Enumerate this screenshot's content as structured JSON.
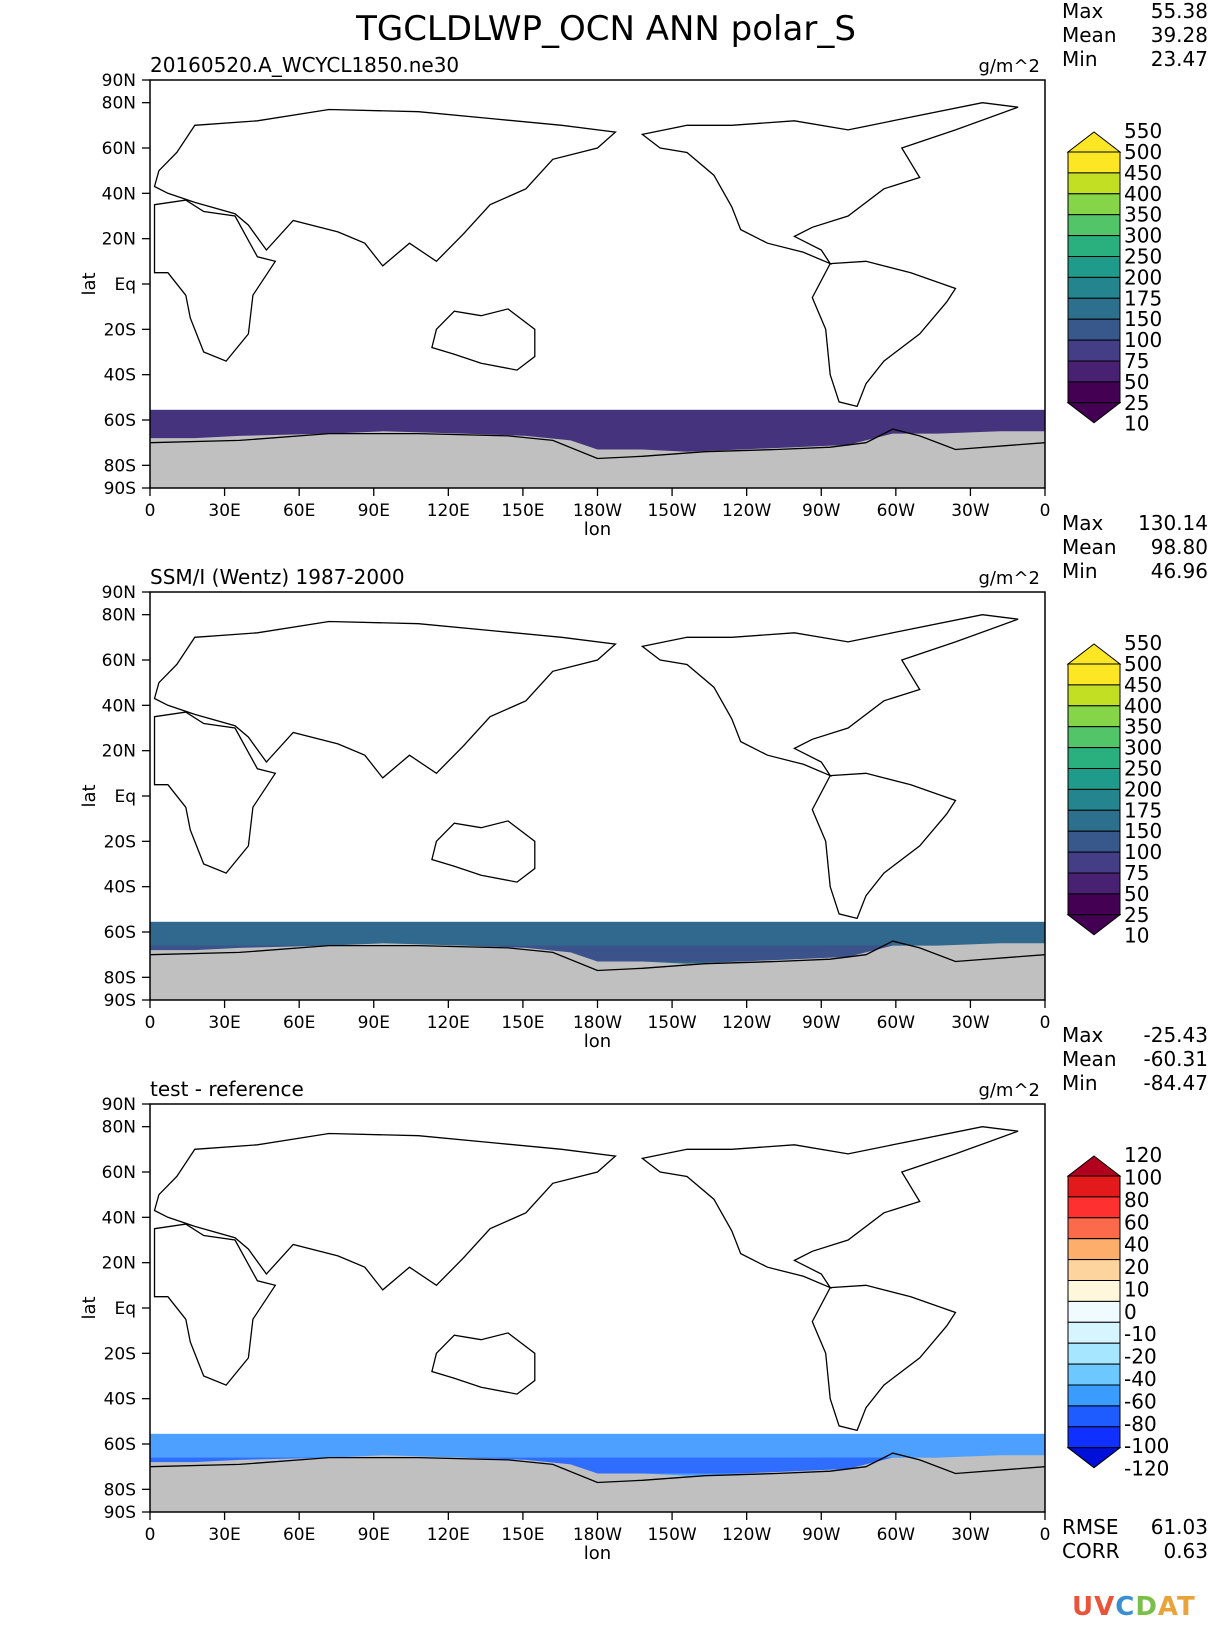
{
  "title": "TGCLDLWP_OCN ANN polar_S",
  "chart_data": [
    {
      "type": "heatmap",
      "subtitle": "20160520.A_WCYCL1850.ne30",
      "units": "g/m^2",
      "stats": {
        "max_label": "Max",
        "max": "55.38",
        "mean_label": "Mean",
        "mean": "39.28",
        "min_label": "Min",
        "min": "23.47"
      },
      "xlabel": "lon",
      "ylabel": "lat",
      "xticks": [
        "0",
        "30E",
        "60E",
        "90E",
        "120E",
        "150E",
        "180W",
        "150W",
        "120W",
        "90W",
        "60W",
        "30W",
        "0"
      ],
      "yticks": [
        "90N",
        "80N",
        "60N",
        "40N",
        "20N",
        "Eq",
        "20S",
        "40S",
        "60S",
        "80S",
        "90S"
      ],
      "colorbar": {
        "levels": [
          "550",
          "500",
          "450",
          "400",
          "350",
          "300",
          "250",
          "200",
          "175",
          "150",
          "100",
          "75",
          "50",
          "25",
          "10"
        ],
        "colors": [
          "#fde725",
          "#c2df23",
          "#86d549",
          "#52c569",
          "#2ab07f",
          "#1e9b8a",
          "#25858e",
          "#2d708e",
          "#38588c",
          "#433e85",
          "#482173",
          "#440154"
        ],
        "over_color": "#fde725",
        "under_color": "#440154"
      },
      "ocean_band_color": "#46337e",
      "ice_band_color": "#46337e",
      "land_color": "#c0c0c0"
    },
    {
      "type": "heatmap",
      "subtitle": "SSM/I (Wentz) 1987-2000",
      "units": "g/m^2",
      "stats": {
        "max_label": "Max",
        "max": "130.14",
        "mean_label": "Mean",
        "mean": "98.80",
        "min_label": "Min",
        "min": "46.96"
      },
      "xlabel": "lon",
      "ylabel": "lat",
      "xticks": [
        "0",
        "30E",
        "60E",
        "90E",
        "120E",
        "150E",
        "180W",
        "150W",
        "120W",
        "90W",
        "60W",
        "30W",
        "0"
      ],
      "yticks": [
        "90N",
        "80N",
        "60N",
        "40N",
        "20N",
        "Eq",
        "20S",
        "40S",
        "60S",
        "80S",
        "90S"
      ],
      "colorbar": {
        "levels": [
          "550",
          "500",
          "450",
          "400",
          "350",
          "300",
          "250",
          "200",
          "175",
          "150",
          "100",
          "75",
          "50",
          "25",
          "10"
        ],
        "colors": [
          "#fde725",
          "#c2df23",
          "#86d549",
          "#52c569",
          "#2ab07f",
          "#1e9b8a",
          "#25858e",
          "#2d708e",
          "#38588c",
          "#433e85",
          "#482173",
          "#440154"
        ],
        "over_color": "#fde725",
        "under_color": "#440154"
      },
      "ocean_band_color": "#31688e",
      "ice_band_color": "#3b528b",
      "land_color": "#c0c0c0"
    },
    {
      "type": "heatmap",
      "subtitle": "test - reference",
      "units": "g/m^2",
      "stats": {
        "max_label": "Max",
        "max": "-25.43",
        "mean_label": "Mean",
        "mean": "-60.31",
        "min_label": "Min",
        "min": "-84.47"
      },
      "xlabel": "lon",
      "ylabel": "lat",
      "xticks": [
        "0",
        "30E",
        "60E",
        "90E",
        "120E",
        "150E",
        "180W",
        "150W",
        "120W",
        "90W",
        "60W",
        "30W",
        "0"
      ],
      "yticks": [
        "90N",
        "80N",
        "60N",
        "40N",
        "20N",
        "Eq",
        "20S",
        "40S",
        "60S",
        "80S",
        "90S"
      ],
      "colorbar": {
        "levels": [
          "120",
          "100",
          "80",
          "60",
          "40",
          "20",
          "10",
          "0",
          "-10",
          "-20",
          "-40",
          "-60",
          "-80",
          "-100",
          "-120"
        ],
        "colors": [
          "#e31a1c",
          "#ff3030",
          "#fb6a4a",
          "#fdae6b",
          "#fdd49e",
          "#fff7dc",
          "#f0fbff",
          "#d6f5ff",
          "#a6e6ff",
          "#6cc8ff",
          "#3a9cff",
          "#1f5cff",
          "#1030ff"
        ],
        "over_color": "#b2001f",
        "under_color": "#0010d8"
      },
      "ocean_band_color": "#4da0ff",
      "ice_band_color": "#2f6dff",
      "land_color": "#c0c0c0",
      "footer_stats": {
        "rmse_label": "RMSE",
        "rmse": "61.03",
        "corr_label": "CORR",
        "corr": "0.63"
      }
    }
  ],
  "logo": {
    "p1": "UV",
    "p2": "C",
    "p3": "D",
    "p4": "AT"
  }
}
